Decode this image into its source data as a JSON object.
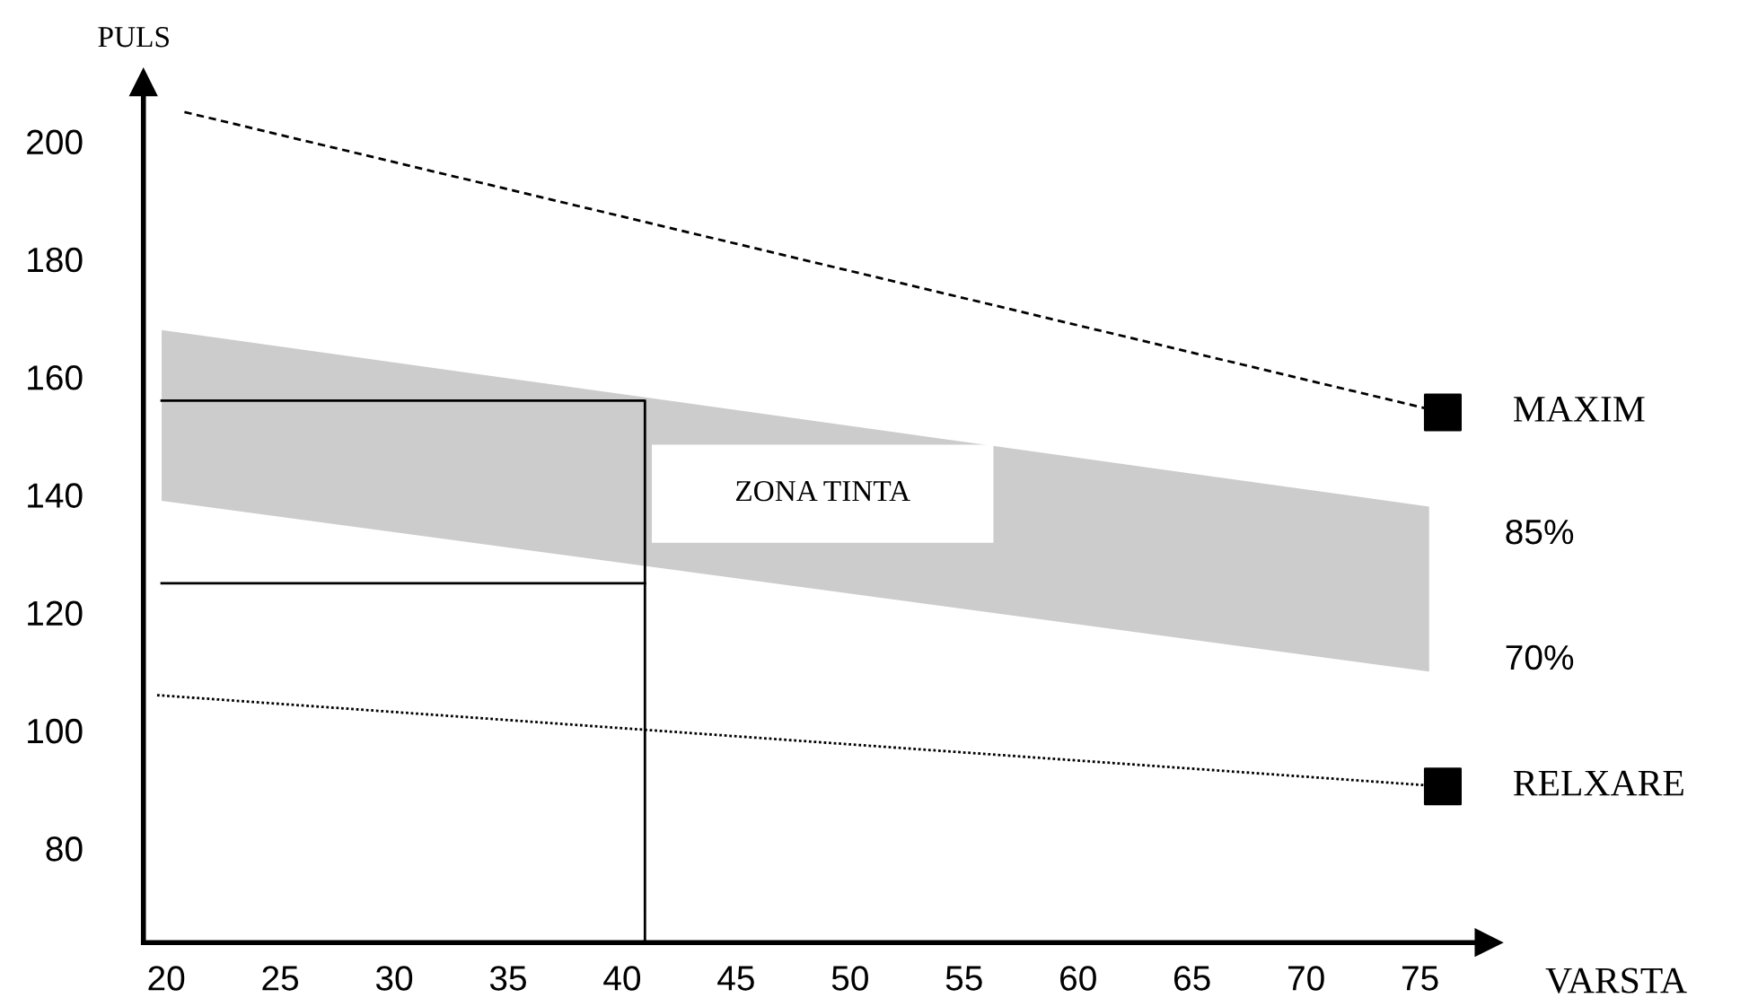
{
  "chart_data": {
    "type": "line",
    "xlabel": "VARSTA",
    "ylabel": "PULS",
    "xlim": [
      19,
      78
    ],
    "xticks": [
      20,
      25,
      30,
      35,
      40,
      45,
      50,
      55,
      60,
      65,
      70,
      75
    ],
    "ylim": [
      64,
      210
    ],
    "yticks": [
      80,
      100,
      120,
      140,
      160,
      180,
      200
    ],
    "grid": false,
    "legend": false,
    "series": [
      {
        "type": "area",
        "x": [
          19.8,
          75.4,
          75.4,
          19.8
        ],
        "values": [
          168,
          138,
          110,
          139
        ],
        "color": "#cccccc"
      },
      {
        "name": "MAXIM",
        "x": [
          20.8,
          76
        ],
        "values": [
          205,
          154
        ],
        "color": "#000000",
        "line_style": "dashed",
        "marker": "none"
      },
      {
        "name": "RELXARE",
        "x": [
          19.6,
          76
        ],
        "values": [
          106,
          90.5
        ],
        "color": "#000000",
        "line_style": "dotted",
        "marker": "none"
      },
      {
        "type": "scatter",
        "x": [
          76,
          76
        ],
        "values": [
          154,
          90.5
        ],
        "color": "#000000",
        "marker": "square"
      },
      {
        "x": [
          19.8,
          41,
          41
        ],
        "values": [
          156,
          156,
          64
        ],
        "color": "#000000",
        "line_style": "solid",
        "marker": "none"
      },
      {
        "x": [
          19.8,
          41
        ],
        "values": [
          125,
          125
        ],
        "color": "#000000",
        "line_style": "solid",
        "marker": "none"
      }
    ],
    "annotations": [
      "ZONA TINTA",
      "85%",
      "70%"
    ]
  }
}
